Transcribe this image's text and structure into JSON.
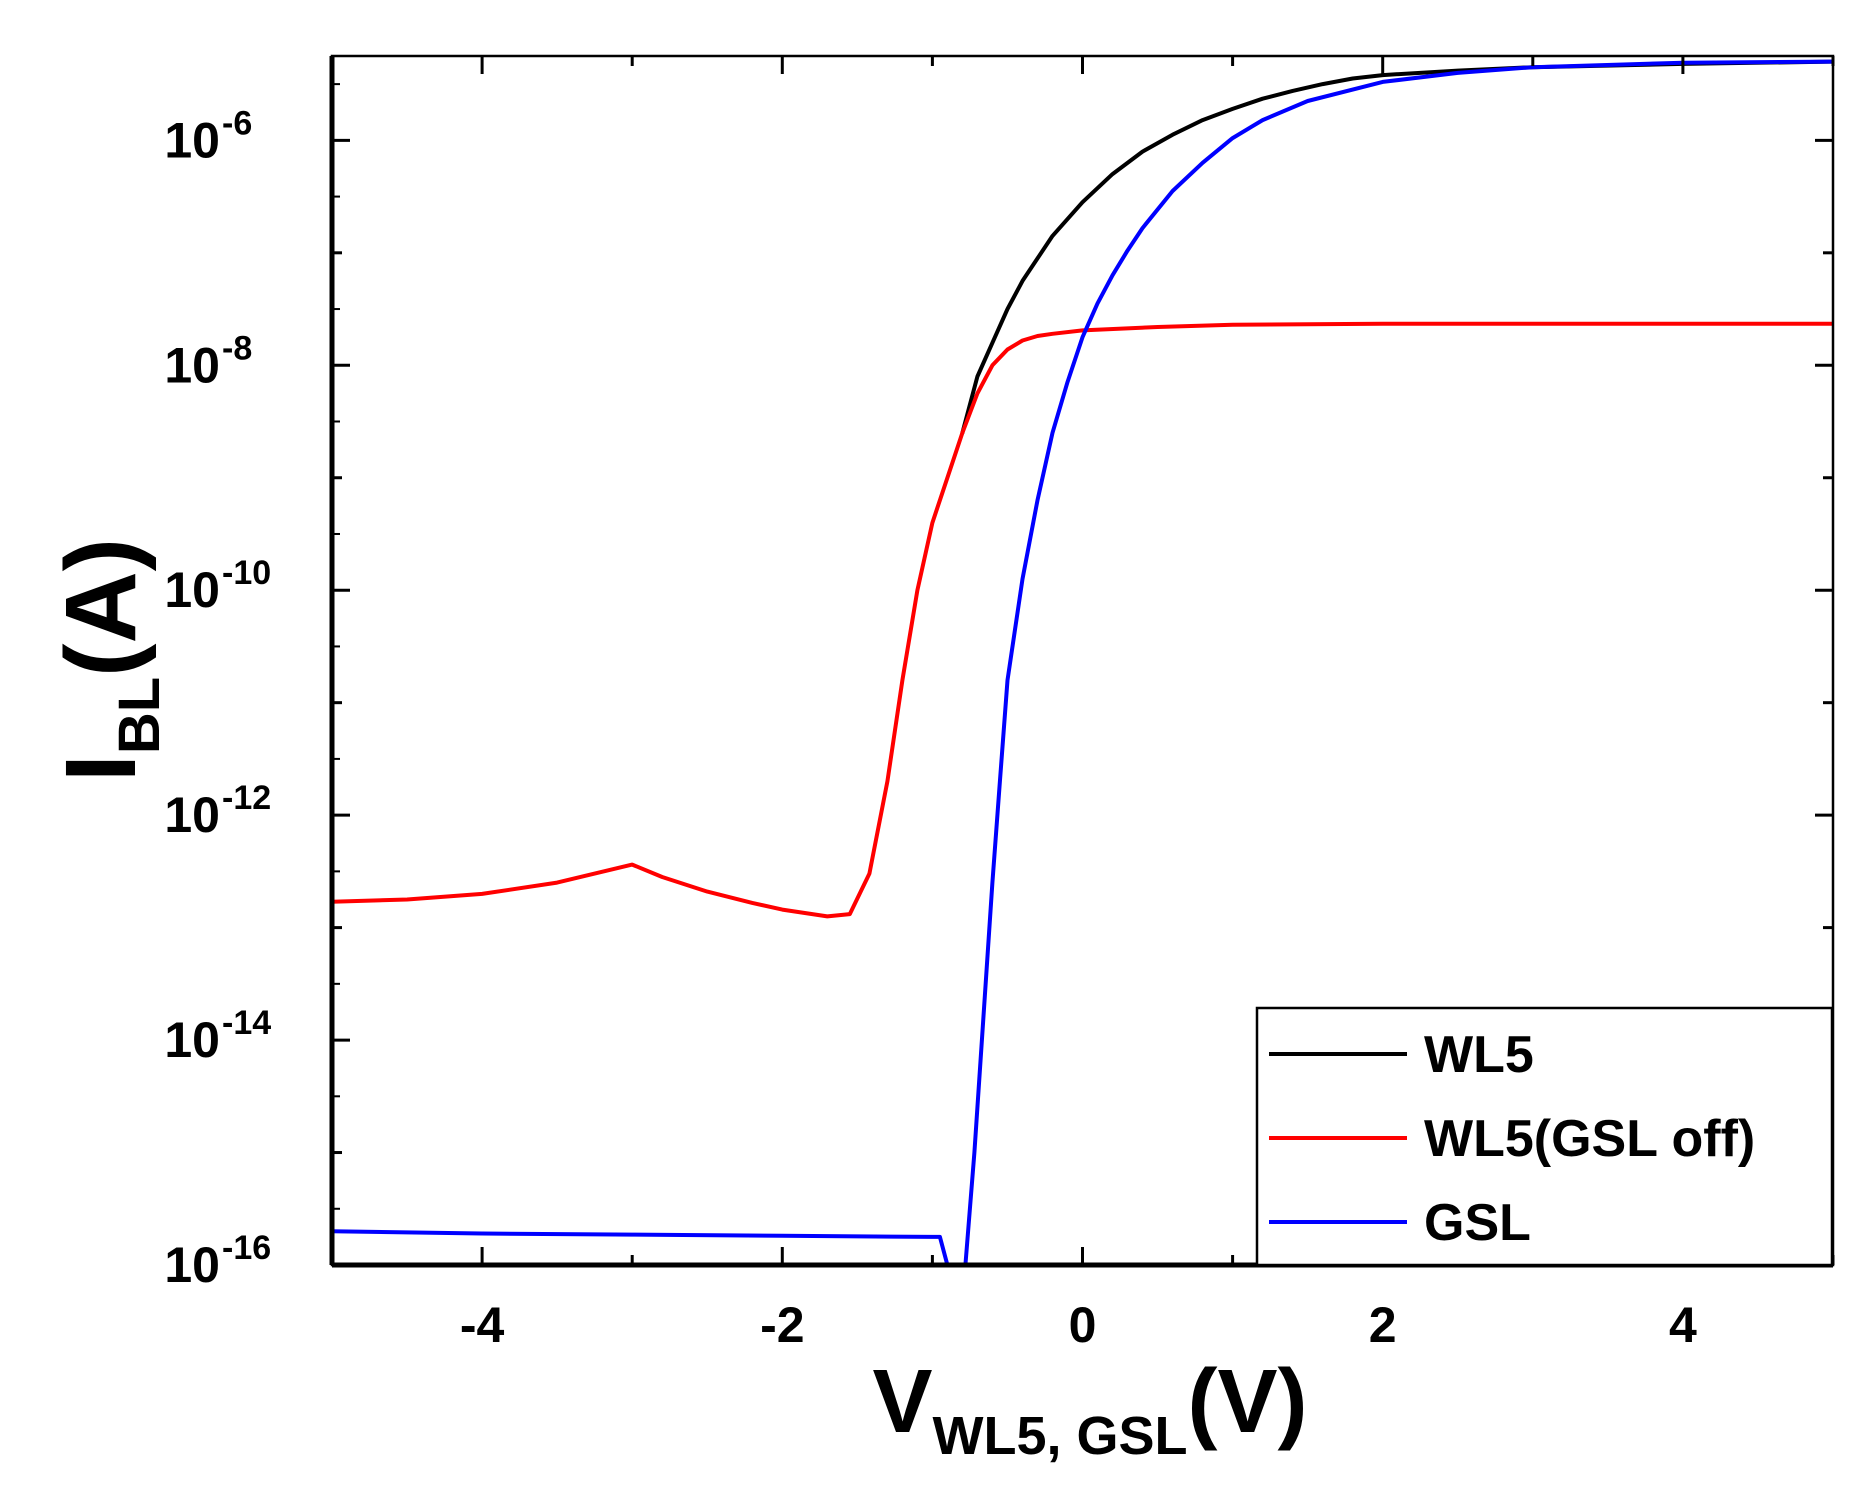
{
  "chart_data": {
    "type": "line",
    "title": "",
    "xlabel": {
      "main": "V",
      "sub": "WL5, GSL",
      "unit": "(V)"
    },
    "ylabel": {
      "main": "I",
      "sub": "BL",
      "unit": "(A)"
    },
    "xlim": [
      -5,
      5
    ],
    "ylim_log10": [
      -16,
      -5.25
    ],
    "yscale": "log",
    "xticks": [
      -4,
      -2,
      0,
      2,
      4
    ],
    "xtick_labels": [
      "-4",
      "-2",
      "0",
      "2",
      "4"
    ],
    "yticks": [
      {
        "base": "10",
        "exp": "-6",
        "value_log10": -6
      },
      {
        "base": "10",
        "exp": "-8",
        "value_log10": -8
      },
      {
        "base": "10",
        "exp": "-10",
        "value_log10": -10
      },
      {
        "base": "10",
        "exp": "-12",
        "value_log10": -12
      },
      {
        "base": "10",
        "exp": "-14",
        "value_log10": -14
      },
      {
        "base": "10",
        "exp": "-16",
        "value_log10": -16
      }
    ],
    "legend_position": "bottom-right",
    "series": [
      {
        "name": "WL5",
        "color": "#000000",
        "points_log10": [
          [
            -0.8,
            -8.6
          ],
          [
            -0.7,
            -8.1
          ],
          [
            -0.6,
            -7.8
          ],
          [
            -0.5,
            -7.5
          ],
          [
            -0.4,
            -7.25
          ],
          [
            -0.3,
            -7.05
          ],
          [
            -0.2,
            -6.85
          ],
          [
            -0.1,
            -6.7
          ],
          [
            0.0,
            -6.55
          ],
          [
            0.2,
            -6.3
          ],
          [
            0.4,
            -6.1
          ],
          [
            0.6,
            -5.95
          ],
          [
            0.8,
            -5.82
          ],
          [
            1.0,
            -5.72
          ],
          [
            1.2,
            -5.63
          ],
          [
            1.4,
            -5.56
          ],
          [
            1.6,
            -5.5
          ],
          [
            1.8,
            -5.45
          ],
          [
            2.0,
            -5.42
          ],
          [
            2.5,
            -5.38
          ],
          [
            3.0,
            -5.35
          ],
          [
            4.0,
            -5.32
          ],
          [
            5.0,
            -5.3
          ]
        ]
      },
      {
        "name": "WL5(GSL off)",
        "color": "#ff0000",
        "points_log10": [
          [
            -5.0,
            -12.77
          ],
          [
            -4.5,
            -12.75
          ],
          [
            -4.0,
            -12.7
          ],
          [
            -3.5,
            -12.6
          ],
          [
            -3.0,
            -12.44
          ],
          [
            -2.8,
            -12.55
          ],
          [
            -2.5,
            -12.68
          ],
          [
            -2.2,
            -12.78
          ],
          [
            -2.0,
            -12.84
          ],
          [
            -1.7,
            -12.9
          ],
          [
            -1.55,
            -12.88
          ],
          [
            -1.42,
            -12.52
          ],
          [
            -1.3,
            -11.7
          ],
          [
            -1.2,
            -10.8
          ],
          [
            -1.1,
            -10.0
          ],
          [
            -1.0,
            -9.4
          ],
          [
            -0.9,
            -9.0
          ],
          [
            -0.8,
            -8.6
          ],
          [
            -0.7,
            -8.25
          ],
          [
            -0.6,
            -8.0
          ],
          [
            -0.5,
            -7.86
          ],
          [
            -0.4,
            -7.78
          ],
          [
            -0.3,
            -7.74
          ],
          [
            -0.2,
            -7.72
          ],
          [
            0.0,
            -7.69
          ],
          [
            0.5,
            -7.66
          ],
          [
            1.0,
            -7.64
          ],
          [
            2.0,
            -7.63
          ],
          [
            3.0,
            -7.63
          ],
          [
            4.0,
            -7.63
          ],
          [
            5.0,
            -7.63
          ]
        ]
      },
      {
        "name": "GSL",
        "color": "#0000ff",
        "points_log10": [
          [
            -5.0,
            -15.7
          ],
          [
            -4.0,
            -15.72
          ],
          [
            -3.0,
            -15.73
          ],
          [
            -2.0,
            -15.74
          ],
          [
            -1.0,
            -15.75
          ],
          [
            -0.95,
            -15.75
          ],
          [
            -0.9,
            -16.0
          ],
          [
            -0.78,
            -16.0
          ],
          [
            -0.72,
            -15.0
          ],
          [
            -0.65,
            -13.6
          ],
          [
            -0.6,
            -12.6
          ],
          [
            -0.55,
            -11.7
          ],
          [
            -0.5,
            -10.8
          ],
          [
            -0.4,
            -9.9
          ],
          [
            -0.3,
            -9.2
          ],
          [
            -0.2,
            -8.6
          ],
          [
            -0.1,
            -8.15
          ],
          [
            0.0,
            -7.75
          ],
          [
            0.1,
            -7.45
          ],
          [
            0.2,
            -7.2
          ],
          [
            0.3,
            -6.98
          ],
          [
            0.4,
            -6.78
          ],
          [
            0.6,
            -6.45
          ],
          [
            0.8,
            -6.2
          ],
          [
            1.0,
            -5.98
          ],
          [
            1.2,
            -5.82
          ],
          [
            1.5,
            -5.65
          ],
          [
            2.0,
            -5.48
          ],
          [
            2.5,
            -5.4
          ],
          [
            3.0,
            -5.35
          ],
          [
            4.0,
            -5.31
          ],
          [
            5.0,
            -5.3
          ]
        ]
      }
    ]
  }
}
